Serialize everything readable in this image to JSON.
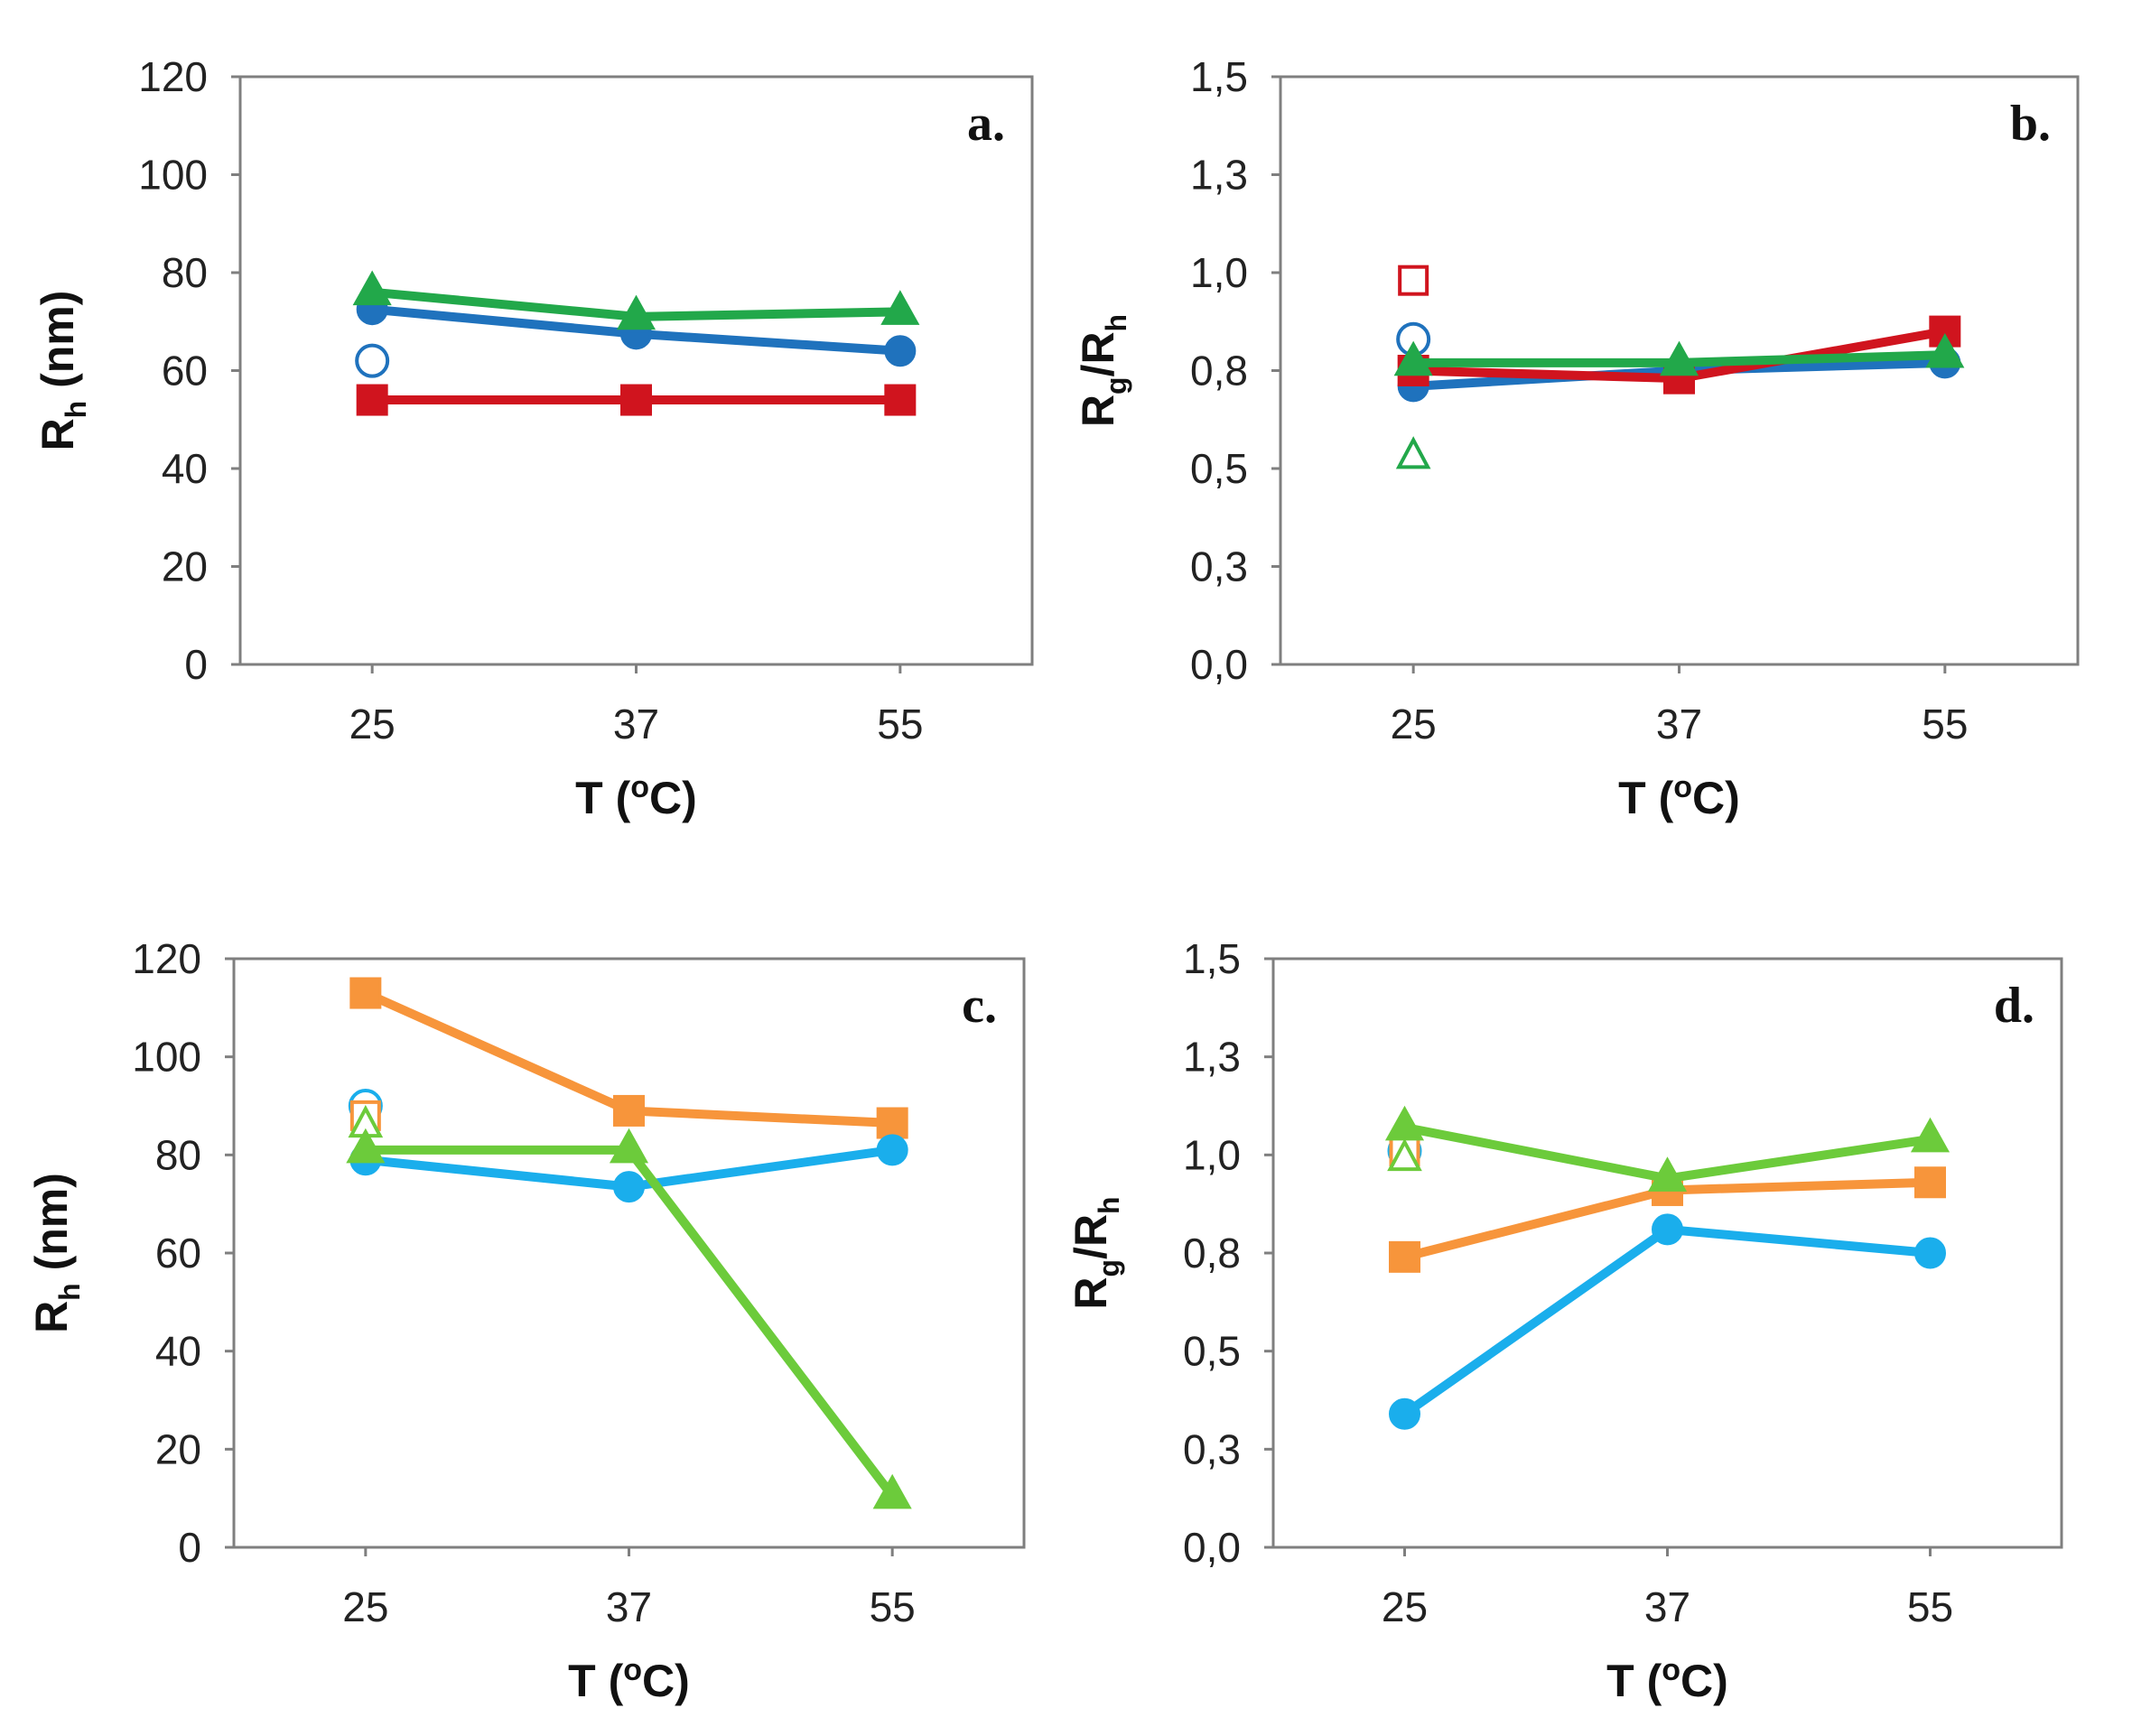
{
  "chart_data": [
    {
      "type": "line",
      "panel_label": "a.",
      "x": [
        "25",
        "37",
        "55"
      ],
      "xlabel": "T  (oC)",
      "xlabel_parts": {
        "main": "T  (",
        "sup": "o",
        "tail": "C)"
      },
      "ylabel": "Rh (nm)",
      "ylabel_parts": {
        "main": "R",
        "sub": "h",
        "tail": " (nm)"
      },
      "ylim": [
        0,
        120
      ],
      "yticks": [
        0,
        20,
        40,
        60,
        80,
        100,
        120
      ],
      "ytick_labels": [
        "0",
        "20",
        "40",
        "60",
        "80",
        "100",
        "120"
      ],
      "series": [
        {
          "name": "red",
          "color": "#d0141e",
          "marker": "square",
          "values": [
            54,
            54,
            54
          ]
        },
        {
          "name": "blue",
          "color": "#1f72bd",
          "marker": "circle",
          "values": [
            72.5,
            67.5,
            64
          ]
        },
        {
          "name": "green",
          "color": "#22a84a",
          "marker": "triangle",
          "values": [
            76,
            71,
            72
          ]
        }
      ],
      "open_points": [
        {
          "x": "25",
          "y": 62,
          "color": "#1f72bd",
          "marker": "circle"
        }
      ]
    },
    {
      "type": "line",
      "panel_label": "b.",
      "x": [
        "25",
        "37",
        "55"
      ],
      "xlabel": "T  (oC)",
      "xlabel_parts": {
        "main": "T  (",
        "sup": "o",
        "tail": "C)"
      },
      "ylabel": "Rg/Rh",
      "ylabel_parts": {
        "main": "R",
        "sub": "g",
        "mid": "/R",
        "sub2": "h"
      },
      "ylim": [
        0,
        1.5
      ],
      "yticks": [
        0,
        0.25,
        0.5,
        0.75,
        1.0,
        1.25,
        1.5
      ],
      "ytick_labels": [
        "0,0",
        "0,3",
        "0,5",
        "0,8",
        "1,0",
        "1,3",
        "1,5"
      ],
      "series": [
        {
          "name": "blue",
          "color": "#1f72bd",
          "marker": "circle",
          "values": [
            0.71,
            0.75,
            0.77
          ]
        },
        {
          "name": "red",
          "color": "#d0141e",
          "marker": "square",
          "values": [
            0.75,
            0.73,
            0.85
          ]
        },
        {
          "name": "green",
          "color": "#22a84a",
          "marker": "triangle",
          "values": [
            0.77,
            0.77,
            0.79
          ]
        }
      ],
      "open_points": [
        {
          "x": "25",
          "y": 0.98,
          "color": "#d0141e",
          "marker": "square"
        },
        {
          "x": "25",
          "y": 0.83,
          "color": "#1f72bd",
          "marker": "circle"
        },
        {
          "x": "25",
          "y": 0.53,
          "color": "#22a84a",
          "marker": "triangle"
        }
      ]
    },
    {
      "type": "line",
      "panel_label": "c.",
      "x": [
        "25",
        "37",
        "55"
      ],
      "xlabel": "T (oC)",
      "xlabel_parts": {
        "main": "T (",
        "sup": "o",
        "tail": "C)"
      },
      "ylabel": "Rh (nm)",
      "ylabel_parts": {
        "main": "R",
        "sub": "h",
        "tail": " (nm)"
      },
      "ylim": [
        0,
        120
      ],
      "yticks": [
        0,
        20,
        40,
        60,
        80,
        100,
        120
      ],
      "ytick_labels": [
        "0",
        "20",
        "40",
        "60",
        "80",
        "100",
        "120"
      ],
      "series": [
        {
          "name": "orange",
          "color": "#f7953b",
          "marker": "square",
          "values": [
            113,
            89,
            86.5
          ]
        },
        {
          "name": "cyan",
          "color": "#1aaeec",
          "marker": "circle",
          "values": [
            79,
            73.5,
            81
          ]
        },
        {
          "name": "light green",
          "color": "#6ccb3b",
          "marker": "triangle",
          "values": [
            81,
            81,
            10.5
          ]
        }
      ],
      "open_points": [
        {
          "x": "25",
          "y": 90,
          "color": "#1aaeec",
          "marker": "circle"
        },
        {
          "x": "25",
          "y": 88,
          "color": "#f7953b",
          "marker": "square"
        },
        {
          "x": "25",
          "y": 86,
          "color": "#6ccb3b",
          "marker": "triangle"
        }
      ]
    },
    {
      "type": "line",
      "panel_label": "d.",
      "x": [
        "25",
        "37",
        "55"
      ],
      "xlabel": "T (oC)",
      "xlabel_parts": {
        "main": "T (",
        "sup": "o",
        "tail": "C)"
      },
      "ylabel": "Rg/Rh",
      "ylabel_parts": {
        "main": "R",
        "sub": "g",
        "mid": "/R",
        "sub2": "h"
      },
      "ylim": [
        0,
        1.5
      ],
      "yticks": [
        0,
        0.25,
        0.5,
        0.75,
        1.0,
        1.25,
        1.5
      ],
      "ytick_labels": [
        "0,0",
        "0,3",
        "0,5",
        "0,8",
        "1,0",
        "1,3",
        "1,5"
      ],
      "series": [
        {
          "name": "cyan",
          "color": "#1aaeec",
          "marker": "circle",
          "values": [
            0.34,
            0.81,
            0.75
          ]
        },
        {
          "name": "orange",
          "color": "#f7953b",
          "marker": "square",
          "values": [
            0.74,
            0.91,
            0.93
          ]
        },
        {
          "name": "light green",
          "color": "#6ccb3b",
          "marker": "triangle",
          "values": [
            1.07,
            0.94,
            1.04
          ]
        }
      ],
      "open_points": [
        {
          "x": "25",
          "y": 1.01,
          "color": "#1aaeec",
          "marker": "circle"
        },
        {
          "x": "25",
          "y": 1.01,
          "color": "#f7953b",
          "marker": "square"
        },
        {
          "x": "25",
          "y": 0.99,
          "color": "#6ccb3b",
          "marker": "triangle"
        }
      ]
    }
  ]
}
